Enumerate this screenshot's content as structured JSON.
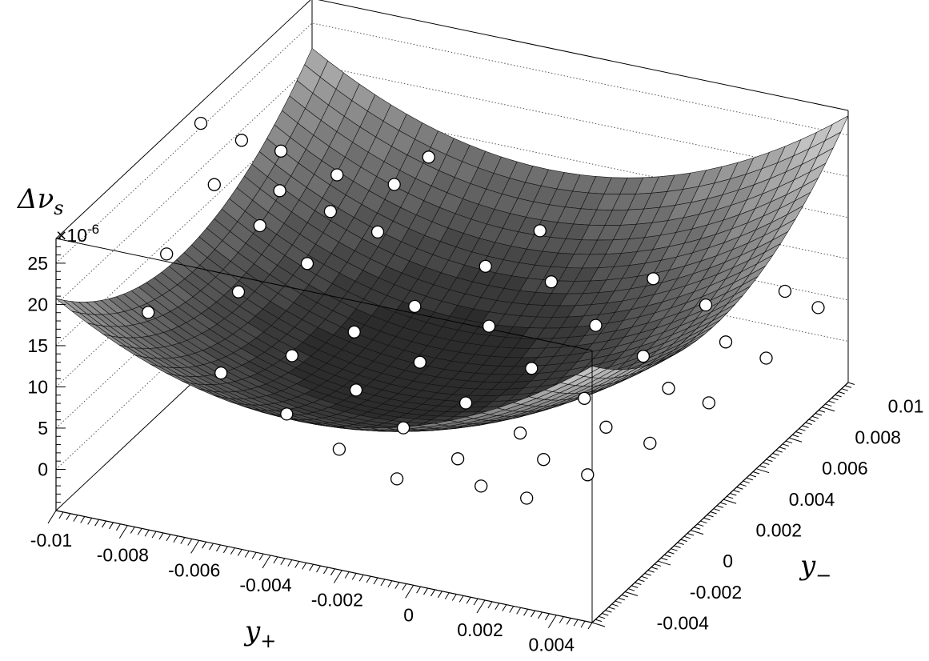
{
  "chart_data": {
    "type": "surface3d",
    "title": "",
    "xlabel": "y",
    "xlabel_sub": "+",
    "ylabel": "y",
    "ylabel_sub": "−",
    "zlabel_delta": "Δ",
    "zlabel_var": "ν",
    "zlabel_sub": "s",
    "z_exponent": "×10",
    "z_exponent_power": "-6",
    "xlim": [
      -0.01,
      0.005
    ],
    "ylim": [
      -0.005,
      0.0105
    ],
    "zlim": [
      -5,
      28
    ],
    "x_ticks": [
      "-0.01",
      "-0.008",
      "-0.006",
      "-0.004",
      "-0.002",
      "0",
      "0.002",
      "0.004"
    ],
    "y_ticks": [
      "-0.004",
      "-0.002",
      "0",
      "0.002",
      "0.004",
      "0.006",
      "0.008",
      "0.01"
    ],
    "z_ticks": [
      "0",
      "5",
      "10",
      "15",
      "20",
      "25"
    ],
    "surface_model": "z = 2.0e5*(x + 0.0034)^2 + 1.6e5*(y - 0.0025)^2 + 3 (z in units of 1e-6)",
    "points": [
      {
        "x": -0.0102,
        "y": 0.0042,
        "z": 24.5
      },
      {
        "x": -0.0098,
        "y": 0.0058,
        "z": 19.8
      },
      {
        "x": -0.0093,
        "y": 0.0071,
        "z": 16.5
      },
      {
        "x": -0.0089,
        "y": 0.0022,
        "z": 22.0
      },
      {
        "x": -0.0085,
        "y": 0.0053,
        "z": 15.8
      },
      {
        "x": -0.0081,
        "y": 0.0079,
        "z": 13.2
      },
      {
        "x": -0.0088,
        "y": -0.0009,
        "z": 19.5
      },
      {
        "x": -0.0079,
        "y": 0.0028,
        "z": 16.8
      },
      {
        "x": -0.0075,
        "y": 0.0062,
        "z": 12.5
      },
      {
        "x": -0.0071,
        "y": 0.0092,
        "z": 10.5
      },
      {
        "x": -0.0083,
        "y": -0.0031,
        "z": 17.0
      },
      {
        "x": -0.0073,
        "y": 0.0002,
        "z": 14.2
      },
      {
        "x": -0.0069,
        "y": 0.0035,
        "z": 11.8
      },
      {
        "x": -0.0065,
        "y": 0.0069,
        "z": 9.6
      },
      {
        "x": -0.0058,
        "y": -0.0041,
        "z": 13.8
      },
      {
        "x": -0.0052,
        "y": -0.0011,
        "z": 10.8
      },
      {
        "x": -0.0048,
        "y": 0.0018,
        "z": 8.6
      },
      {
        "x": -0.0044,
        "y": 0.0046,
        "z": 6.8
      },
      {
        "x": -0.0039,
        "y": 0.0078,
        "z": 6.1
      },
      {
        "x": -0.0033,
        "y": 0.0098,
        "z": 7.2
      },
      {
        "x": -0.0041,
        "y": -0.0038,
        "z": 9.8
      },
      {
        "x": -0.0035,
        "y": -0.0009,
        "z": 7.8
      },
      {
        "x": -0.0031,
        "y": 0.0021,
        "z": 5.9
      },
      {
        "x": -0.0026,
        "y": 0.0052,
        "z": 4.9
      },
      {
        "x": -0.0022,
        "y": 0.0081,
        "z": 5.2
      },
      {
        "x": -0.0024,
        "y": -0.0043,
        "z": 8.0
      },
      {
        "x": -0.0019,
        "y": -0.0015,
        "z": 5.8
      },
      {
        "x": -0.0014,
        "y": 0.0012,
        "z": 4.2
      },
      {
        "x": -0.0009,
        "y": 0.0041,
        "z": 3.4
      },
      {
        "x": -0.0004,
        "y": 0.0069,
        "z": 3.8
      },
      {
        "x": 0.0001,
        "y": 0.0093,
        "z": 5.4
      },
      {
        "x": -0.0006,
        "y": -0.0047,
        "z": 6.8
      },
      {
        "x": -0.0001,
        "y": -0.0021,
        "z": 4.8
      },
      {
        "x": 0.0004,
        "y": 0.0006,
        "z": 3.3
      },
      {
        "x": 0.0009,
        "y": 0.0034,
        "z": 2.7
      },
      {
        "x": 0.0013,
        "y": 0.0061,
        "z": 3.1
      },
      {
        "x": 0.0018,
        "y": 0.0088,
        "z": 4.7
      },
      {
        "x": 0.0012,
        "y": -0.0035,
        "z": 5.3
      },
      {
        "x": 0.0017,
        "y": -0.0008,
        "z": 3.9
      },
      {
        "x": 0.0022,
        "y": 0.0019,
        "z": 3.2
      },
      {
        "x": 0.0027,
        "y": 0.0046,
        "z": 3.3
      },
      {
        "x": 0.0031,
        "y": 0.0072,
        "z": 4.4
      },
      {
        "x": 0.0036,
        "y": 0.0097,
        "z": 6.3
      },
      {
        "x": 0.0028,
        "y": -0.0042,
        "z": 6.6
      },
      {
        "x": 0.0033,
        "y": -0.0016,
        "z": 5.0
      },
      {
        "x": 0.0038,
        "y": 0.0011,
        "z": 4.2
      },
      {
        "x": 0.0042,
        "y": 0.0038,
        "z": 4.4
      },
      {
        "x": 0.0046,
        "y": 0.0064,
        "z": 5.3
      },
      {
        "x": 0.0049,
        "y": 0.0089,
        "z": 7.0
      },
      {
        "x": -0.0066,
        "y": 0.0102,
        "z": 12.4
      }
    ],
    "grid": true,
    "colors": {
      "surface_dark": "#1e1e1e",
      "surface_light": "#d4d4d4",
      "marker_fill": "#ffffff",
      "marker_edge": "#000000"
    }
  }
}
